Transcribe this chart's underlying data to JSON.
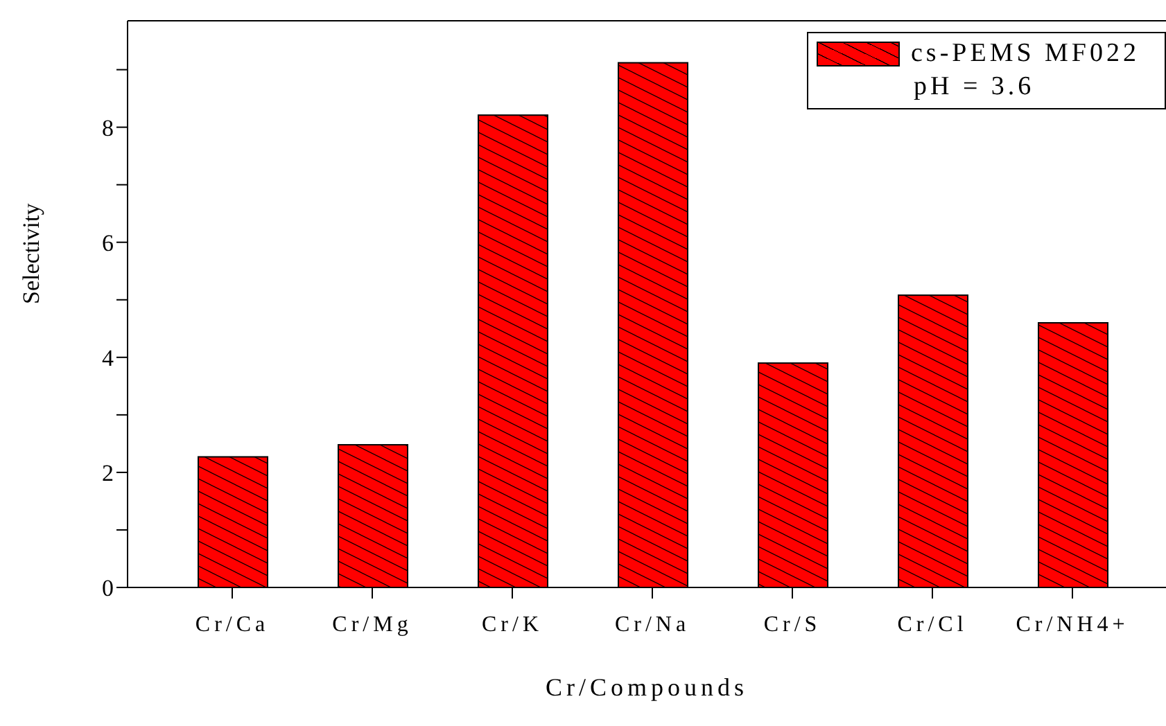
{
  "chart_data": {
    "type": "bar",
    "xlabel": "Cr/Compounds",
    "ylabel": "Selectivity",
    "categories": [
      "Cr/Ca",
      "Cr/Mg",
      "Cr/K",
      "Cr/Na",
      "Cr/S",
      "Cr/Cl",
      "Cr/NH4+"
    ],
    "series": [
      {
        "name": "cs-PEMS MF022",
        "color": "#ff0000",
        "values": [
          2.27,
          2.48,
          8.21,
          9.12,
          3.9,
          5.08,
          4.6
        ]
      }
    ],
    "ylim": [
      0,
      9.85
    ],
    "yticks": [
      0,
      {
        "value": 1,
        "label": null
      },
      2,
      {
        "value": 3,
        "label": null
      },
      4,
      {
        "value": 5,
        "label": null
      },
      6,
      {
        "value": 7,
        "label": null
      },
      8,
      {
        "value": 9,
        "label": null
      }
    ],
    "annotations": [
      "pH = 3.6"
    ],
    "legend": "top right",
    "grid": false
  }
}
